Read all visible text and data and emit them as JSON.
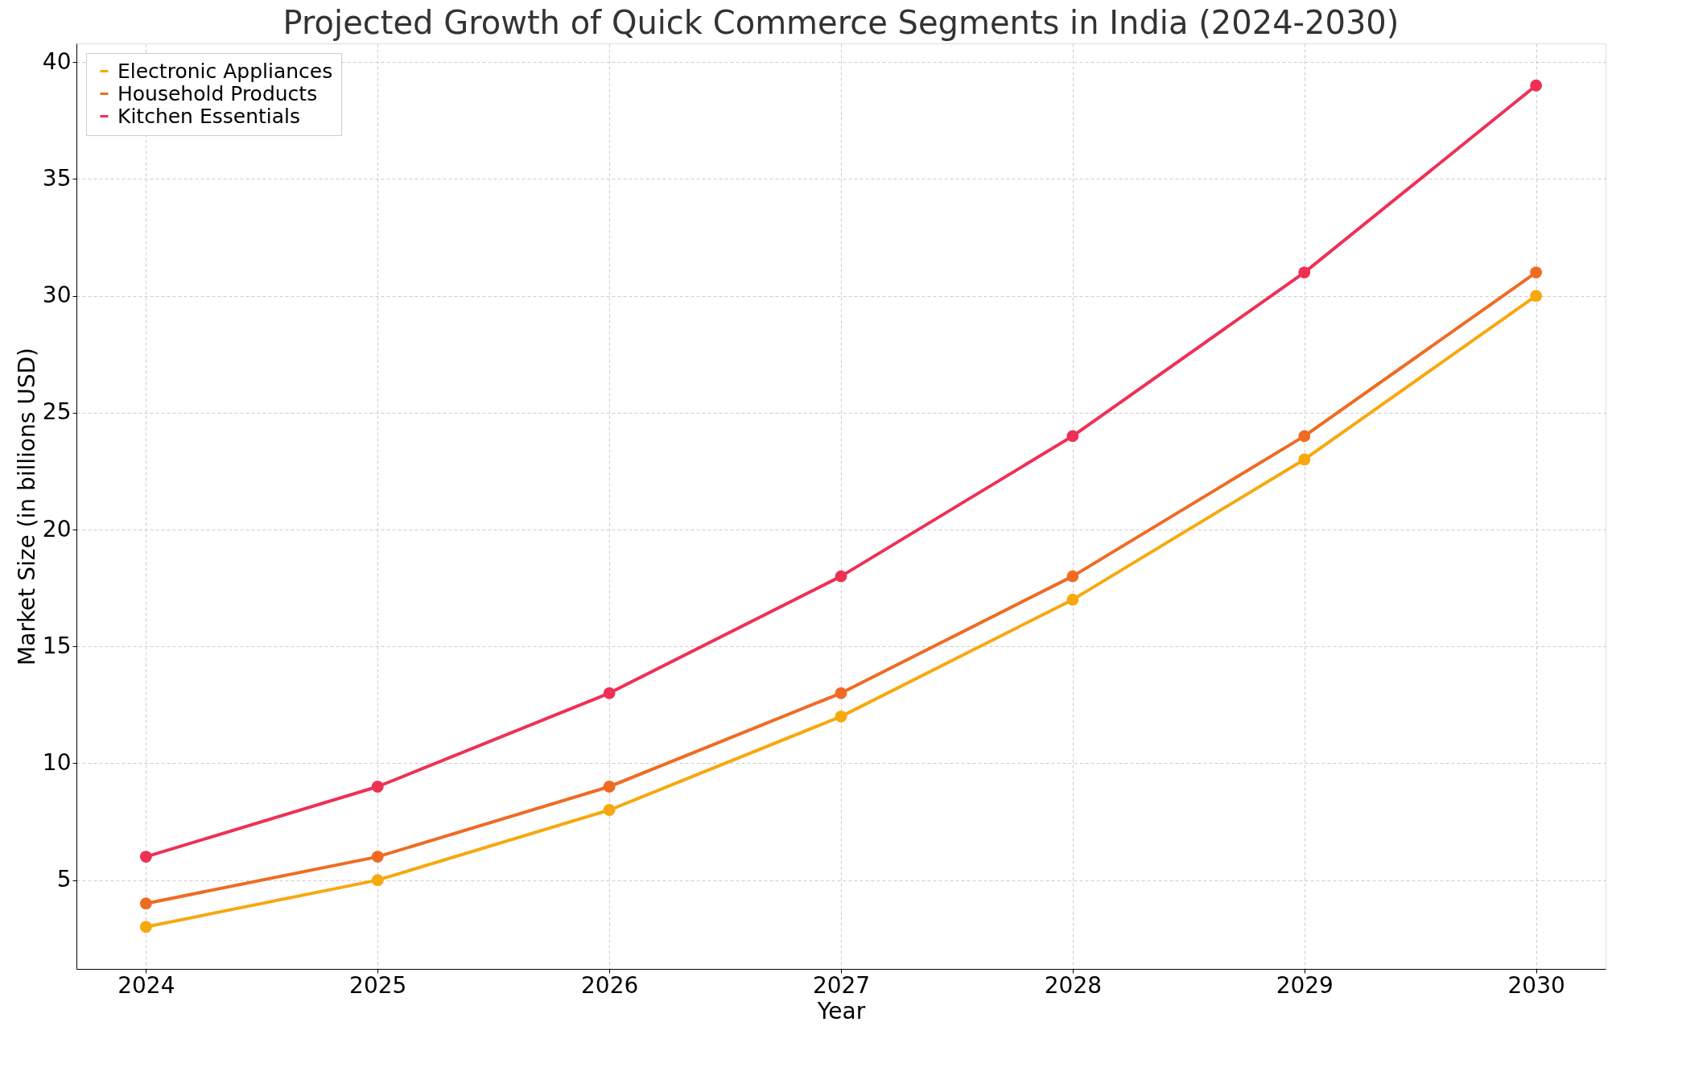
{
  "chart_data": {
    "type": "line",
    "title": "Projected Growth of Quick Commerce Segments in India (2024-2030)",
    "xlabel": "Year",
    "ylabel": "Market Size (in billions USD)",
    "x": [
      2024,
      2025,
      2026,
      2027,
      2028,
      2029,
      2030
    ],
    "series": [
      {
        "name": "Electronic Appliances",
        "color": "#f7a80d",
        "values": [
          3,
          5,
          8,
          12,
          17,
          23,
          30
        ]
      },
      {
        "name": "Household Products",
        "color": "#ef6b22",
        "values": [
          4,
          6,
          9,
          13,
          18,
          24,
          31
        ]
      },
      {
        "name": "Kitchen Essentials",
        "color": "#ef3055",
        "values": [
          6,
          9,
          13,
          18,
          24,
          31,
          39
        ]
      }
    ],
    "xlim": [
      2023.7,
      2030.3
    ],
    "xticks": [
      2024,
      2025,
      2026,
      2027,
      2028,
      2029,
      2030
    ],
    "ylim": [
      1.2,
      40.8
    ],
    "yticks": [
      5,
      10,
      15,
      20,
      25,
      30,
      35,
      40
    ],
    "grid": true,
    "legend": "top left",
    "marker": "circle",
    "line_style": "solid"
  }
}
